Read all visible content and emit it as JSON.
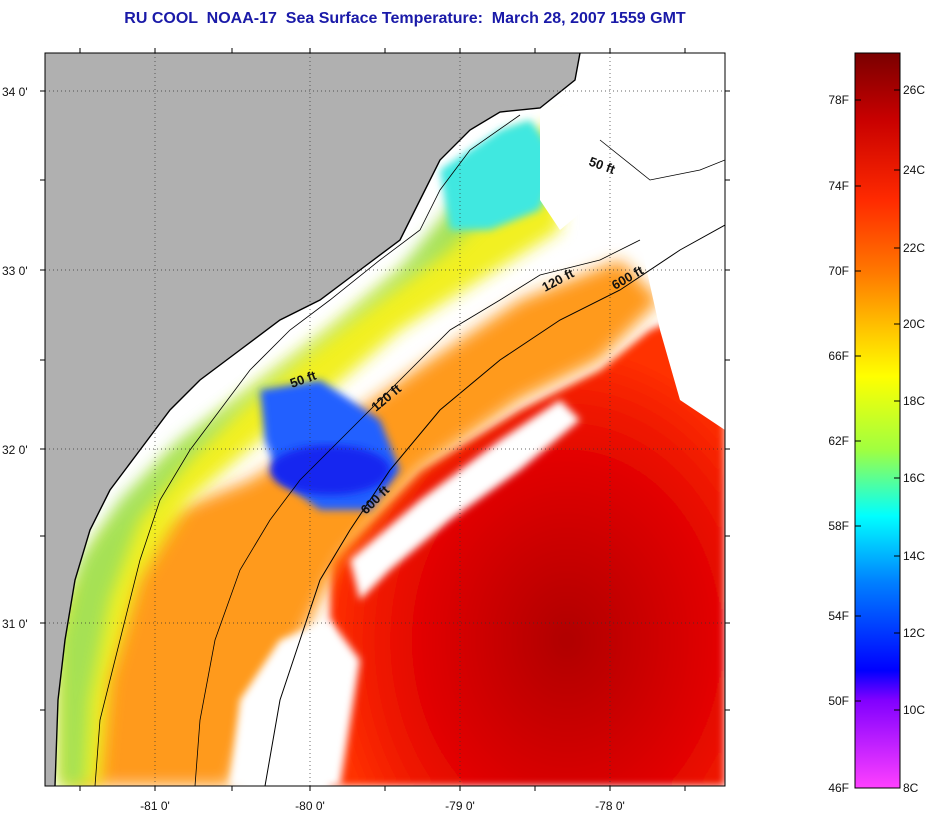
{
  "title": "RU COOL  NOAA-17  Sea Surface Temperature:  March 28, 2007 1559 GMT",
  "map": {
    "latitude_labels": [
      "34 0'",
      "33 0'",
      "32 0'",
      "31 0'"
    ],
    "longitude_labels": [
      "-81 0'",
      "-80 0'",
      "-79 0'",
      "-78 0'"
    ],
    "contour_labels": {
      "north_50": "50 ft",
      "north_120": "120 ft",
      "north_600": "600 ft",
      "south_50": "50 ft",
      "south_120": "120 ft",
      "south_600": "600 ft"
    },
    "colors": {
      "land": "#b0b0b0",
      "cloud": "#ffffff",
      "coastline": "#000000"
    }
  },
  "colorbar": {
    "fahrenheit_labels": [
      "78F",
      "74F",
      "70F",
      "66F",
      "62F",
      "58F",
      "54F",
      "50F",
      "46F"
    ],
    "celsius_labels": [
      "26C",
      "24C",
      "22C",
      "20C",
      "18C",
      "16C",
      "14C",
      "12C",
      "10C",
      "8C"
    ],
    "gradient_stops": [
      "#7a0000",
      "#c80000",
      "#ff2a00",
      "#ff7a00",
      "#ffc800",
      "#ffff00",
      "#a0ff40",
      "#00ffff",
      "#0080ff",
      "#0000ff",
      "#8000ff",
      "#ff40ff"
    ]
  }
}
